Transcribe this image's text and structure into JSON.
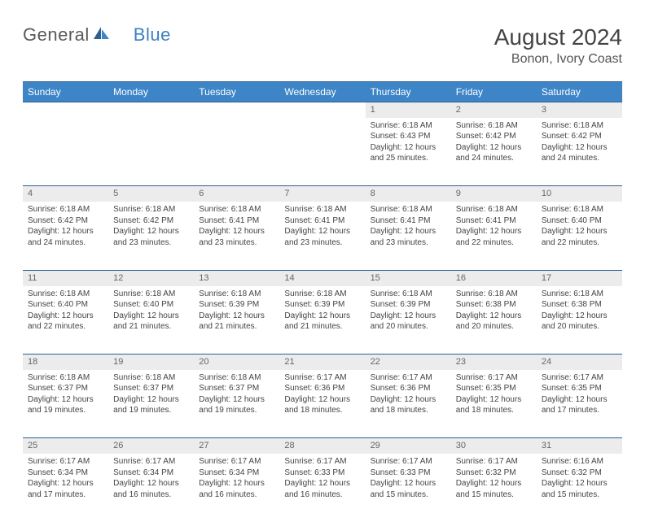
{
  "logo": {
    "text1": "General",
    "text2": "Blue"
  },
  "title": "August 2024",
  "location": "Bonon, Ivory Coast",
  "colors": {
    "header_bg": "#3d85c6",
    "header_border": "#2d5f8f",
    "daynum_bg": "#ececec",
    "text": "#444444",
    "logo_gray": "#5a5a5a",
    "logo_blue": "#3d7fc2"
  },
  "day_headers": [
    "Sunday",
    "Monday",
    "Tuesday",
    "Wednesday",
    "Thursday",
    "Friday",
    "Saturday"
  ],
  "weeks": [
    {
      "nums": [
        "",
        "",
        "",
        "",
        "1",
        "2",
        "3"
      ],
      "cells": [
        null,
        null,
        null,
        null,
        {
          "sunrise": "Sunrise: 6:18 AM",
          "sunset": "Sunset: 6:43 PM",
          "day1": "Daylight: 12 hours",
          "day2": "and 25 minutes."
        },
        {
          "sunrise": "Sunrise: 6:18 AM",
          "sunset": "Sunset: 6:42 PM",
          "day1": "Daylight: 12 hours",
          "day2": "and 24 minutes."
        },
        {
          "sunrise": "Sunrise: 6:18 AM",
          "sunset": "Sunset: 6:42 PM",
          "day1": "Daylight: 12 hours",
          "day2": "and 24 minutes."
        }
      ]
    },
    {
      "nums": [
        "4",
        "5",
        "6",
        "7",
        "8",
        "9",
        "10"
      ],
      "cells": [
        {
          "sunrise": "Sunrise: 6:18 AM",
          "sunset": "Sunset: 6:42 PM",
          "day1": "Daylight: 12 hours",
          "day2": "and 24 minutes."
        },
        {
          "sunrise": "Sunrise: 6:18 AM",
          "sunset": "Sunset: 6:42 PM",
          "day1": "Daylight: 12 hours",
          "day2": "and 23 minutes."
        },
        {
          "sunrise": "Sunrise: 6:18 AM",
          "sunset": "Sunset: 6:41 PM",
          "day1": "Daylight: 12 hours",
          "day2": "and 23 minutes."
        },
        {
          "sunrise": "Sunrise: 6:18 AM",
          "sunset": "Sunset: 6:41 PM",
          "day1": "Daylight: 12 hours",
          "day2": "and 23 minutes."
        },
        {
          "sunrise": "Sunrise: 6:18 AM",
          "sunset": "Sunset: 6:41 PM",
          "day1": "Daylight: 12 hours",
          "day2": "and 23 minutes."
        },
        {
          "sunrise": "Sunrise: 6:18 AM",
          "sunset": "Sunset: 6:41 PM",
          "day1": "Daylight: 12 hours",
          "day2": "and 22 minutes."
        },
        {
          "sunrise": "Sunrise: 6:18 AM",
          "sunset": "Sunset: 6:40 PM",
          "day1": "Daylight: 12 hours",
          "day2": "and 22 minutes."
        }
      ]
    },
    {
      "nums": [
        "11",
        "12",
        "13",
        "14",
        "15",
        "16",
        "17"
      ],
      "cells": [
        {
          "sunrise": "Sunrise: 6:18 AM",
          "sunset": "Sunset: 6:40 PM",
          "day1": "Daylight: 12 hours",
          "day2": "and 22 minutes."
        },
        {
          "sunrise": "Sunrise: 6:18 AM",
          "sunset": "Sunset: 6:40 PM",
          "day1": "Daylight: 12 hours",
          "day2": "and 21 minutes."
        },
        {
          "sunrise": "Sunrise: 6:18 AM",
          "sunset": "Sunset: 6:39 PM",
          "day1": "Daylight: 12 hours",
          "day2": "and 21 minutes."
        },
        {
          "sunrise": "Sunrise: 6:18 AM",
          "sunset": "Sunset: 6:39 PM",
          "day1": "Daylight: 12 hours",
          "day2": "and 21 minutes."
        },
        {
          "sunrise": "Sunrise: 6:18 AM",
          "sunset": "Sunset: 6:39 PM",
          "day1": "Daylight: 12 hours",
          "day2": "and 20 minutes."
        },
        {
          "sunrise": "Sunrise: 6:18 AM",
          "sunset": "Sunset: 6:38 PM",
          "day1": "Daylight: 12 hours",
          "day2": "and 20 minutes."
        },
        {
          "sunrise": "Sunrise: 6:18 AM",
          "sunset": "Sunset: 6:38 PM",
          "day1": "Daylight: 12 hours",
          "day2": "and 20 minutes."
        }
      ]
    },
    {
      "nums": [
        "18",
        "19",
        "20",
        "21",
        "22",
        "23",
        "24"
      ],
      "cells": [
        {
          "sunrise": "Sunrise: 6:18 AM",
          "sunset": "Sunset: 6:37 PM",
          "day1": "Daylight: 12 hours",
          "day2": "and 19 minutes."
        },
        {
          "sunrise": "Sunrise: 6:18 AM",
          "sunset": "Sunset: 6:37 PM",
          "day1": "Daylight: 12 hours",
          "day2": "and 19 minutes."
        },
        {
          "sunrise": "Sunrise: 6:18 AM",
          "sunset": "Sunset: 6:37 PM",
          "day1": "Daylight: 12 hours",
          "day2": "and 19 minutes."
        },
        {
          "sunrise": "Sunrise: 6:17 AM",
          "sunset": "Sunset: 6:36 PM",
          "day1": "Daylight: 12 hours",
          "day2": "and 18 minutes."
        },
        {
          "sunrise": "Sunrise: 6:17 AM",
          "sunset": "Sunset: 6:36 PM",
          "day1": "Daylight: 12 hours",
          "day2": "and 18 minutes."
        },
        {
          "sunrise": "Sunrise: 6:17 AM",
          "sunset": "Sunset: 6:35 PM",
          "day1": "Daylight: 12 hours",
          "day2": "and 18 minutes."
        },
        {
          "sunrise": "Sunrise: 6:17 AM",
          "sunset": "Sunset: 6:35 PM",
          "day1": "Daylight: 12 hours",
          "day2": "and 17 minutes."
        }
      ]
    },
    {
      "nums": [
        "25",
        "26",
        "27",
        "28",
        "29",
        "30",
        "31"
      ],
      "cells": [
        {
          "sunrise": "Sunrise: 6:17 AM",
          "sunset": "Sunset: 6:34 PM",
          "day1": "Daylight: 12 hours",
          "day2": "and 17 minutes."
        },
        {
          "sunrise": "Sunrise: 6:17 AM",
          "sunset": "Sunset: 6:34 PM",
          "day1": "Daylight: 12 hours",
          "day2": "and 16 minutes."
        },
        {
          "sunrise": "Sunrise: 6:17 AM",
          "sunset": "Sunset: 6:34 PM",
          "day1": "Daylight: 12 hours",
          "day2": "and 16 minutes."
        },
        {
          "sunrise": "Sunrise: 6:17 AM",
          "sunset": "Sunset: 6:33 PM",
          "day1": "Daylight: 12 hours",
          "day2": "and 16 minutes."
        },
        {
          "sunrise": "Sunrise: 6:17 AM",
          "sunset": "Sunset: 6:33 PM",
          "day1": "Daylight: 12 hours",
          "day2": "and 15 minutes."
        },
        {
          "sunrise": "Sunrise: 6:17 AM",
          "sunset": "Sunset: 6:32 PM",
          "day1": "Daylight: 12 hours",
          "day2": "and 15 minutes."
        },
        {
          "sunrise": "Sunrise: 6:16 AM",
          "sunset": "Sunset: 6:32 PM",
          "day1": "Daylight: 12 hours",
          "day2": "and 15 minutes."
        }
      ]
    }
  ]
}
